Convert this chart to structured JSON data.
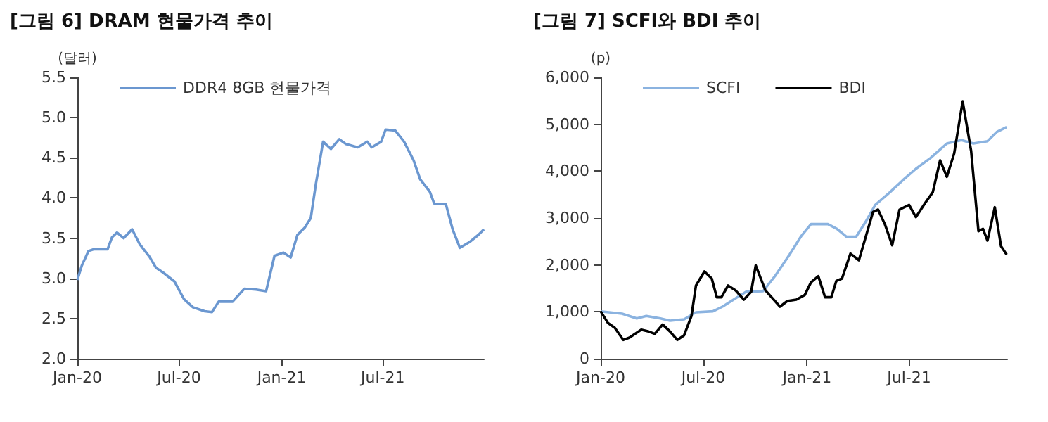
{
  "chart_data": [
    {
      "type": "line",
      "title": "[그림 6] DRAM 현물가격 추이",
      "ylabel": "(달러)",
      "xlim": [
        "2020-01-01",
        "2021-12-29"
      ],
      "xticks": [
        {
          "value": "2020-01-01",
          "label": "Jan-20"
        },
        {
          "value": "2020-07-01",
          "label": "Jul-20"
        },
        {
          "value": "2021-01-01",
          "label": "Jan-21"
        },
        {
          "value": "2021-07-01",
          "label": "Jul-21"
        }
      ],
      "ylim": [
        2,
        5.5
      ],
      "yticks": [
        {
          "value": 2,
          "label": "2.0"
        },
        2.5,
        {
          "value": 3,
          "label": "3.0"
        },
        3.5,
        {
          "value": 4,
          "label": "4.0"
        },
        4.5,
        {
          "value": 5,
          "label": "5.0"
        },
        5.5
      ],
      "legend": "top left",
      "series": [
        {
          "name": "DDR4 8GB 현물가격",
          "color": "#6b97d0",
          "x": [
            "2020-01-01",
            "2020-01-09",
            "2020-01-21",
            "2020-01-30",
            "2020-02-24",
            "2020-03-03",
            "2020-03-12",
            "2020-03-24",
            "2020-04-08",
            "2020-04-22",
            "2020-05-09",
            "2020-05-21",
            "2020-06-03",
            "2020-06-23",
            "2020-07-10",
            "2020-07-26",
            "2020-08-16",
            "2020-08-29",
            "2020-09-10",
            "2020-10-05",
            "2020-10-26",
            "2020-11-16",
            "2020-12-04",
            "2020-12-19",
            "2021-01-04",
            "2021-01-17",
            "2021-01-29",
            "2021-02-11",
            "2021-02-22",
            "2021-03-03",
            "2021-03-16",
            "2021-03-30",
            "2021-04-14",
            "2021-04-26",
            "2021-05-17",
            "2021-06-03",
            "2021-06-11",
            "2021-06-28",
            "2021-07-06",
            "2021-07-23",
            "2021-08-08",
            "2021-08-25",
            "2021-09-06",
            "2021-09-23",
            "2021-10-01",
            "2021-10-22",
            "2021-11-03",
            "2021-11-16",
            "2021-12-03",
            "2021-12-19",
            "2021-12-29"
          ],
          "values": [
            2.98,
            3.16,
            3.34,
            3.36,
            3.36,
            3.51,
            3.57,
            3.5,
            3.61,
            3.42,
            3.27,
            3.13,
            3.07,
            2.96,
            2.74,
            2.64,
            2.59,
            2.58,
            2.71,
            2.71,
            2.87,
            2.86,
            2.84,
            3.28,
            3.32,
            3.26,
            3.54,
            3.63,
            3.75,
            4.17,
            4.7,
            4.61,
            4.73,
            4.67,
            4.63,
            4.7,
            4.63,
            4.7,
            4.85,
            4.84,
            4.7,
            4.47,
            4.23,
            4.08,
            3.93,
            3.92,
            3.61,
            3.38,
            3.45,
            3.54,
            3.61
          ]
        }
      ]
    },
    {
      "type": "line",
      "title": "[그림 7] SCFI와 BDI 추이",
      "ylabel": "(p)",
      "xlim": [
        "2020-01-01",
        "2021-12-22"
      ],
      "xticks": [
        {
          "value": "2020-01-01",
          "label": "Jan-20"
        },
        {
          "value": "2020-07-01",
          "label": "Jul-20"
        },
        {
          "value": "2021-01-01",
          "label": "Jan-21"
        },
        {
          "value": "2021-07-01",
          "label": "Jul-21"
        }
      ],
      "ylim": [
        0,
        6000
      ],
      "yticks": [
        0,
        {
          "value": 1000,
          "label": "1,000"
        },
        {
          "value": 2000,
          "label": "2,000"
        },
        {
          "value": 3000,
          "label": "3,000"
        },
        {
          "value": 4000,
          "label": "4,000"
        },
        {
          "value": 5000,
          "label": "5,000"
        },
        {
          "value": 6000,
          "label": "6,000"
        }
      ],
      "legend": "top left",
      "series": [
        {
          "name": "SCFI",
          "color": "#8bb3e0",
          "x": [
            "2020-01-01",
            "2020-02-08",
            "2020-03-05",
            "2020-03-22",
            "2020-04-16",
            "2020-05-03",
            "2020-05-28",
            "2020-06-18",
            "2020-07-18",
            "2020-08-04",
            "2020-08-30",
            "2020-09-15",
            "2020-10-15",
            "2020-11-05",
            "2020-12-01",
            "2020-12-22",
            "2021-01-08",
            "2021-02-07",
            "2021-02-23",
            "2021-03-12",
            "2021-03-29",
            "2021-04-15",
            "2021-05-02",
            "2021-05-28",
            "2021-06-22",
            "2021-07-13",
            "2021-08-08",
            "2021-09-06",
            "2021-10-02",
            "2021-10-23",
            "2021-11-17",
            "2021-12-04",
            "2021-12-21"
          ],
          "values": [
            1010,
            960,
            860,
            910,
            860,
            810,
            840,
            990,
            1010,
            1110,
            1310,
            1430,
            1440,
            1760,
            2220,
            2620,
            2870,
            2870,
            2770,
            2600,
            2600,
            2920,
            3280,
            3550,
            3830,
            4050,
            4280,
            4590,
            4660,
            4590,
            4640,
            4840,
            4940
          ]
        },
        {
          "name": "BDI",
          "color": "#000000",
          "x": [
            "2020-01-01",
            "2020-01-14",
            "2020-01-26",
            "2020-02-10",
            "2020-02-21",
            "2020-03-13",
            "2020-03-26",
            "2020-04-06",
            "2020-04-20",
            "2020-05-03",
            "2020-05-16",
            "2020-05-28",
            "2020-06-10",
            "2020-06-18",
            "2020-07-03",
            "2020-07-16",
            "2020-07-25",
            "2020-08-02",
            "2020-08-14",
            "2020-08-27",
            "2020-09-11",
            "2020-09-24",
            "2020-10-02",
            "2020-10-19",
            "2020-11-14",
            "2020-11-27",
            "2020-12-13",
            "2020-12-28",
            "2021-01-08",
            "2021-01-21",
            "2021-02-02",
            "2021-02-13",
            "2021-02-22",
            "2021-03-04",
            "2021-03-19",
            "2021-04-03",
            "2021-04-28",
            "2021-05-07",
            "2021-05-19",
            "2021-06-01",
            "2021-06-14",
            "2021-07-01",
            "2021-07-13",
            "2021-07-30",
            "2021-08-12",
            "2021-08-25",
            "2021-09-06",
            "2021-09-19",
            "2021-10-04",
            "2021-10-19",
            "2021-11-01",
            "2021-11-09",
            "2021-11-17",
            "2021-11-30",
            "2021-12-11",
            "2021-12-21"
          ],
          "values": [
            1010,
            760,
            660,
            400,
            450,
            620,
            580,
            530,
            730,
            580,
            400,
            500,
            910,
            1560,
            1860,
            1710,
            1310,
            1310,
            1560,
            1460,
            1260,
            1430,
            1990,
            1460,
            1110,
            1230,
            1260,
            1360,
            1630,
            1760,
            1310,
            1310,
            1660,
            1710,
            2240,
            2100,
            3130,
            3180,
            2870,
            2420,
            3180,
            3280,
            3020,
            3330,
            3550,
            4230,
            3880,
            4380,
            5490,
            4430,
            2720,
            2770,
            2520,
            3230,
            2400,
            2220
          ]
        }
      ]
    }
  ]
}
